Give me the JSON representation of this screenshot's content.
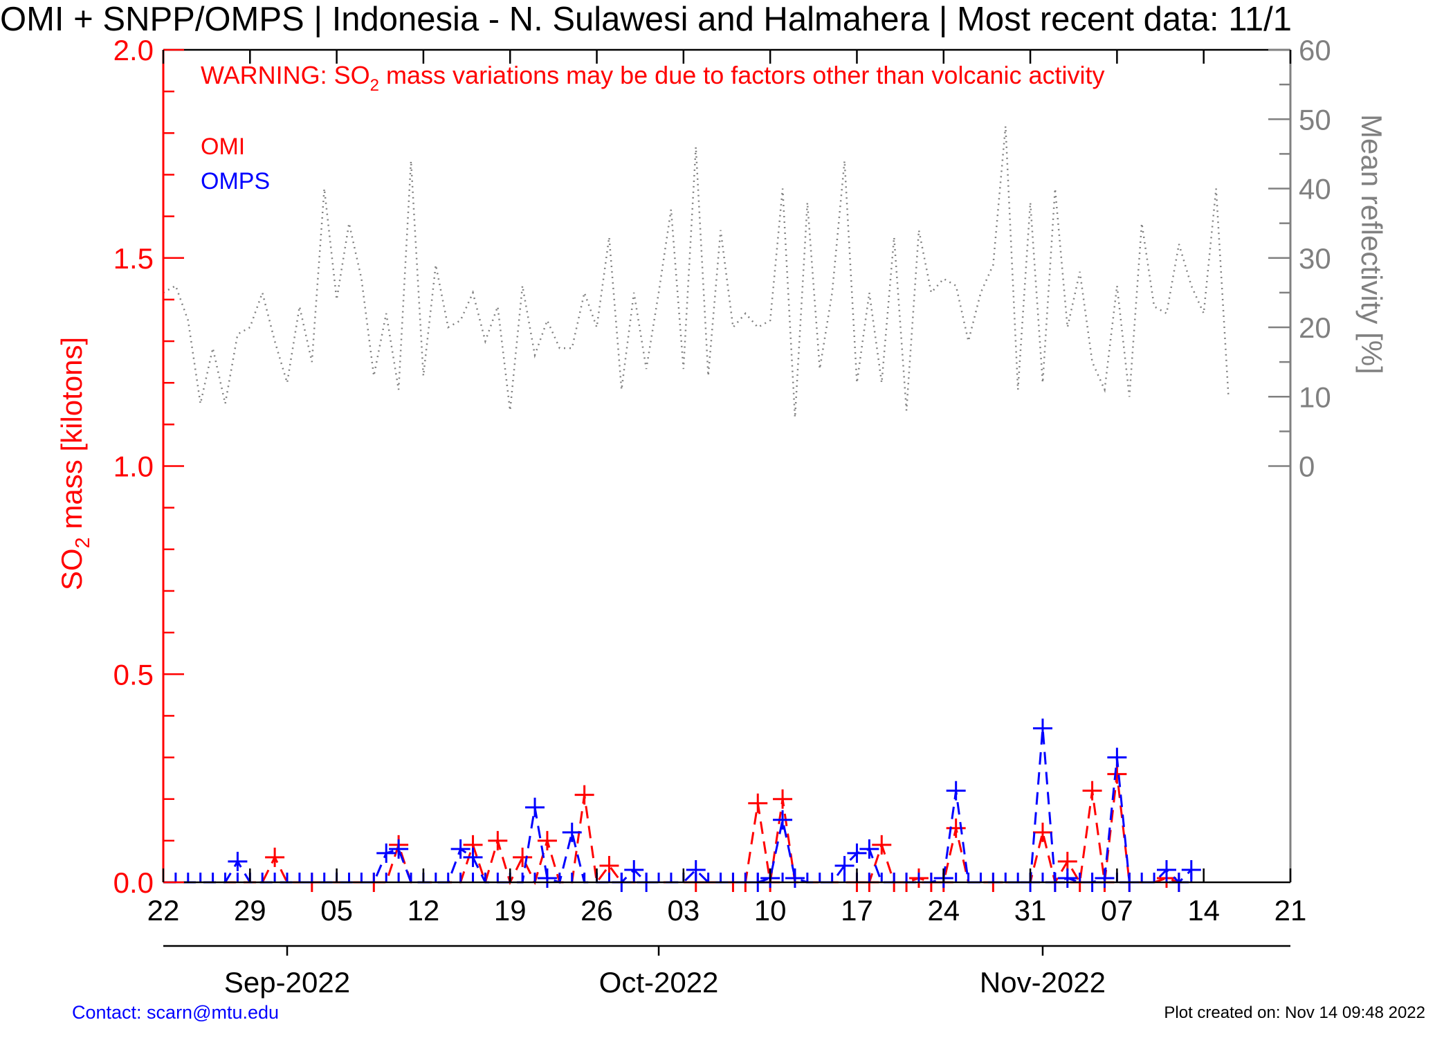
{
  "title": "OMI + SNPP/OMPS | Indonesia - N. Sulawesi and Halmahera | Most recent data: 11/1",
  "warning": {
    "prefix": "WARNING: SO",
    "subscript": "2",
    "suffix": " mass variations may be due to factors other than volcanic activity"
  },
  "legend": {
    "omi": "OMI",
    "omps": "OMPS"
  },
  "contact": "Contact: scarn@mtu.edu",
  "created": "Plot created on: Nov 14 09:48 2022",
  "colors": {
    "omi": "#ff0000",
    "omps": "#0000ff",
    "reflectivity": "#808080",
    "axis": "#000000"
  },
  "chart_data": {
    "type": "line",
    "y_left": {
      "label_prefix": "SO",
      "label_sub": "2",
      "label_suffix": " mass [kilotons]",
      "range": [
        0,
        2.0
      ],
      "tick_labels": [
        "0.0",
        "0.5",
        "1.0",
        "1.5",
        "2.0"
      ],
      "tick_values": [
        0,
        0.5,
        1.0,
        1.5,
        2.0
      ]
    },
    "y_right": {
      "label": "Mean reflectivity [%]",
      "range": [
        -60,
        60
      ],
      "tick_values": [
        0,
        10,
        20,
        30,
        40,
        50,
        60
      ],
      "tick_labels": [
        "0",
        "10",
        "20",
        "30",
        "40",
        "50",
        "60"
      ]
    },
    "x": {
      "start": "2022-08-22",
      "end": "2022-11-21",
      "tick_dates": [
        "2022-08-22",
        "2022-08-29",
        "2022-09-05",
        "2022-09-12",
        "2022-09-19",
        "2022-09-26",
        "2022-10-03",
        "2022-10-10",
        "2022-10-17",
        "2022-10-24",
        "2022-10-31",
        "2022-11-07",
        "2022-11-14",
        "2022-11-21"
      ],
      "tick_labels": [
        "22",
        "29",
        "05",
        "12",
        "19",
        "26",
        "03",
        "10",
        "17",
        "24",
        "31",
        "07",
        "14",
        "21"
      ],
      "months": [
        {
          "label": "Sep-2022",
          "date": "2022-09-01"
        },
        {
          "label": "Oct-2022",
          "date": "2022-10-01"
        },
        {
          "label": "Nov-2022",
          "date": "2022-11-01"
        }
      ]
    },
    "series": [
      {
        "name": "OMI",
        "style": "dashed",
        "points": [
          [
            "2022-08-31",
            0.06
          ],
          [
            "2022-09-03",
            0.0
          ],
          [
            "2022-09-08",
            0.0
          ],
          [
            "2022-09-10",
            0.09
          ],
          [
            "2022-09-16",
            0.09
          ],
          [
            "2022-09-18",
            0.1
          ],
          [
            "2022-09-20",
            0.06
          ],
          [
            "2022-09-22",
            0.1
          ],
          [
            "2022-09-25",
            0.21
          ],
          [
            "2022-09-27",
            0.04
          ],
          [
            "2022-10-04",
            0.0
          ],
          [
            "2022-10-07",
            0.0
          ],
          [
            "2022-10-08",
            0.0
          ],
          [
            "2022-10-09",
            0.19
          ],
          [
            "2022-10-10",
            0.0
          ],
          [
            "2022-10-11",
            0.2
          ],
          [
            "2022-10-17",
            0.0
          ],
          [
            "2022-10-18",
            0.0
          ],
          [
            "2022-10-19",
            0.09
          ],
          [
            "2022-10-20",
            0.0
          ],
          [
            "2022-10-21",
            0.0
          ],
          [
            "2022-10-22",
            0.01
          ],
          [
            "2022-10-23",
            0.0
          ],
          [
            "2022-10-24",
            0.0
          ],
          [
            "2022-10-25",
            0.13
          ],
          [
            "2022-10-28",
            0.0
          ],
          [
            "2022-11-01",
            0.12
          ],
          [
            "2022-11-02",
            0.0
          ],
          [
            "2022-11-03",
            0.05
          ],
          [
            "2022-11-04",
            0.0
          ],
          [
            "2022-11-05",
            0.22
          ],
          [
            "2022-11-06",
            0.0
          ],
          [
            "2022-11-07",
            0.26
          ],
          [
            "2022-11-08",
            0.0
          ],
          [
            "2022-11-11",
            0.01
          ],
          [
            "2022-11-12",
            0.0
          ]
        ]
      },
      {
        "name": "OMPS",
        "style": "dashed",
        "points": [
          [
            "2022-08-28",
            0.05
          ],
          [
            "2022-09-09",
            0.07
          ],
          [
            "2022-09-10",
            0.08
          ],
          [
            "2022-09-15",
            0.08
          ],
          [
            "2022-09-16",
            0.06
          ],
          [
            "2022-09-21",
            0.18
          ],
          [
            "2022-09-22",
            0.01
          ],
          [
            "2022-09-24",
            0.12
          ],
          [
            "2022-09-28",
            0.0
          ],
          [
            "2022-09-29",
            0.03
          ],
          [
            "2022-09-30",
            0.0
          ],
          [
            "2022-10-04",
            0.03
          ],
          [
            "2022-10-09",
            0.0
          ],
          [
            "2022-10-10",
            0.01
          ],
          [
            "2022-10-11",
            0.15
          ],
          [
            "2022-10-12",
            0.01
          ],
          [
            "2022-10-16",
            0.04
          ],
          [
            "2022-10-17",
            0.07
          ],
          [
            "2022-10-18",
            0.08
          ],
          [
            "2022-10-24",
            0.01
          ],
          [
            "2022-10-25",
            0.22
          ],
          [
            "2022-10-31",
            0.0
          ],
          [
            "2022-11-01",
            0.37
          ],
          [
            "2022-11-02",
            0.0
          ],
          [
            "2022-11-03",
            0.01
          ],
          [
            "2022-11-05",
            0.0
          ],
          [
            "2022-11-06",
            0.01
          ],
          [
            "2022-11-07",
            0.3
          ],
          [
            "2022-11-08",
            0.0
          ],
          [
            "2022-11-11",
            0.03
          ],
          [
            "2022-11-12",
            0.0
          ],
          [
            "2022-11-13",
            0.03
          ]
        ]
      },
      {
        "name": "Mean reflectivity",
        "style": "dotted",
        "axis": "right",
        "values_daily_from": "2022-08-22",
        "values": [
          25,
          26,
          21,
          9,
          17,
          9,
          19,
          20,
          25,
          18,
          12,
          23,
          15,
          40,
          24,
          35,
          27,
          13,
          22,
          11,
          44,
          13,
          29,
          20,
          21,
          25,
          18,
          23,
          8,
          26,
          16,
          21,
          17,
          17,
          25,
          20,
          33,
          11,
          25,
          14,
          25,
          37,
          14,
          46,
          13,
          34,
          20,
          22,
          20,
          21,
          40,
          7,
          38,
          14,
          25,
          44,
          12,
          25,
          12,
          33,
          8,
          34,
          25,
          27,
          26,
          18,
          25,
          29,
          49,
          11,
          38,
          12,
          40,
          20,
          28,
          15,
          11,
          26,
          10,
          35,
          23,
          22,
          32,
          26,
          22,
          40,
          10
        ]
      }
    ],
    "grid": false,
    "legend_position": "top-left"
  }
}
